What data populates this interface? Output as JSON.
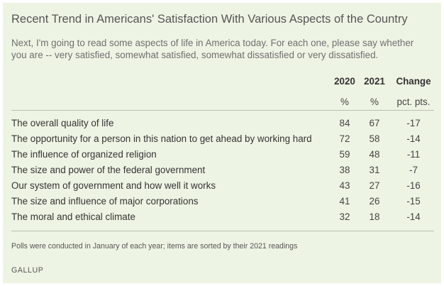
{
  "title": "Recent Trend in Americans' Satisfaction With Various Aspects of the Country",
  "subtitle": "Next, I'm going to read some aspects of life in America today. For each one, please say whether you are -- very satisfied, somewhat satisfied, somewhat dissatisfied or very dissatisfied.",
  "table": {
    "headers": {
      "col2020": "2020",
      "col2021": "2021",
      "change": "Change"
    },
    "units": {
      "col2020": "%",
      "col2021": "%",
      "change": "pct. pts."
    },
    "rows": [
      {
        "label": "The overall quality of life",
        "v2020": "84",
        "v2021": "67",
        "change": "-17"
      },
      {
        "label": "The opportunity for a person in this nation to get ahead by working hard",
        "v2020": "72",
        "v2021": "58",
        "change": "-14"
      },
      {
        "label": "The influence of organized religion",
        "v2020": "59",
        "v2021": "48",
        "change": "-11"
      },
      {
        "label": "The size and power of the federal government",
        "v2020": "38",
        "v2021": "31",
        "change": "-7"
      },
      {
        "label": "Our system of government and how well it works",
        "v2020": "43",
        "v2021": "27",
        "change": "-16"
      },
      {
        "label": "The size and influence of major corporations",
        "v2020": "41",
        "v2021": "26",
        "change": "-15"
      },
      {
        "label": "The moral and ethical climate",
        "v2020": "32",
        "v2021": "18",
        "change": "-14"
      }
    ]
  },
  "note": "Polls were conducted in January of each year; items are sorted by their 2021 readings",
  "source": "GALLUP",
  "colors": {
    "background": "#eef4e4",
    "rule": "#b9bfb1",
    "text": "#333333"
  }
}
